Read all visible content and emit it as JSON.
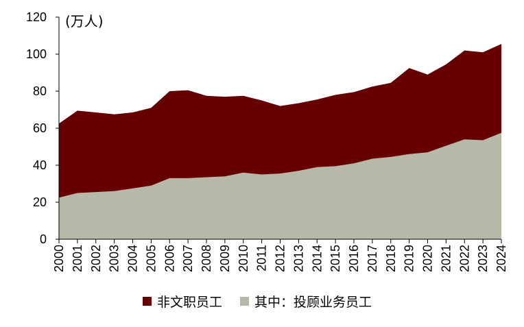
{
  "chart_data": {
    "type": "area",
    "stacked": true,
    "unit_label": "(万人)",
    "x": [
      "2000",
      "2001",
      "2002",
      "2003",
      "2004",
      "2005",
      "2006",
      "2007",
      "2008",
      "2009",
      "2010",
      "2011",
      "2012",
      "2013",
      "2014",
      "2015",
      "2016",
      "2017",
      "2018",
      "2019",
      "2020",
      "2021",
      "2022",
      "2023",
      "2024"
    ],
    "ylim": [
      0,
      120
    ],
    "yticks": [
      0,
      20,
      40,
      60,
      80,
      100,
      120
    ],
    "grid": false,
    "legend_position": "bottom",
    "series": [
      {
        "name": "非文职员工",
        "color": "#660000",
        "total_values": [
          62.5,
          69.5,
          68.5,
          67.5,
          68.5,
          71,
          80,
          80.5,
          77.5,
          77,
          77.5,
          75,
          72,
          73.5,
          75.5,
          78,
          79.5,
          82.5,
          84.5,
          92.5,
          89,
          94.5,
          102,
          101,
          105.5
        ]
      },
      {
        "name": "其中：投顾业务员工",
        "color": "#b8b8a8",
        "values": [
          22.5,
          25,
          25.5,
          26,
          27.5,
          29,
          33,
          33,
          33.5,
          34,
          36,
          35,
          35.5,
          37,
          39,
          39.5,
          41,
          43.5,
          44.5,
          46,
          47,
          50.5,
          54,
          53.5,
          57.5
        ]
      }
    ]
  }
}
